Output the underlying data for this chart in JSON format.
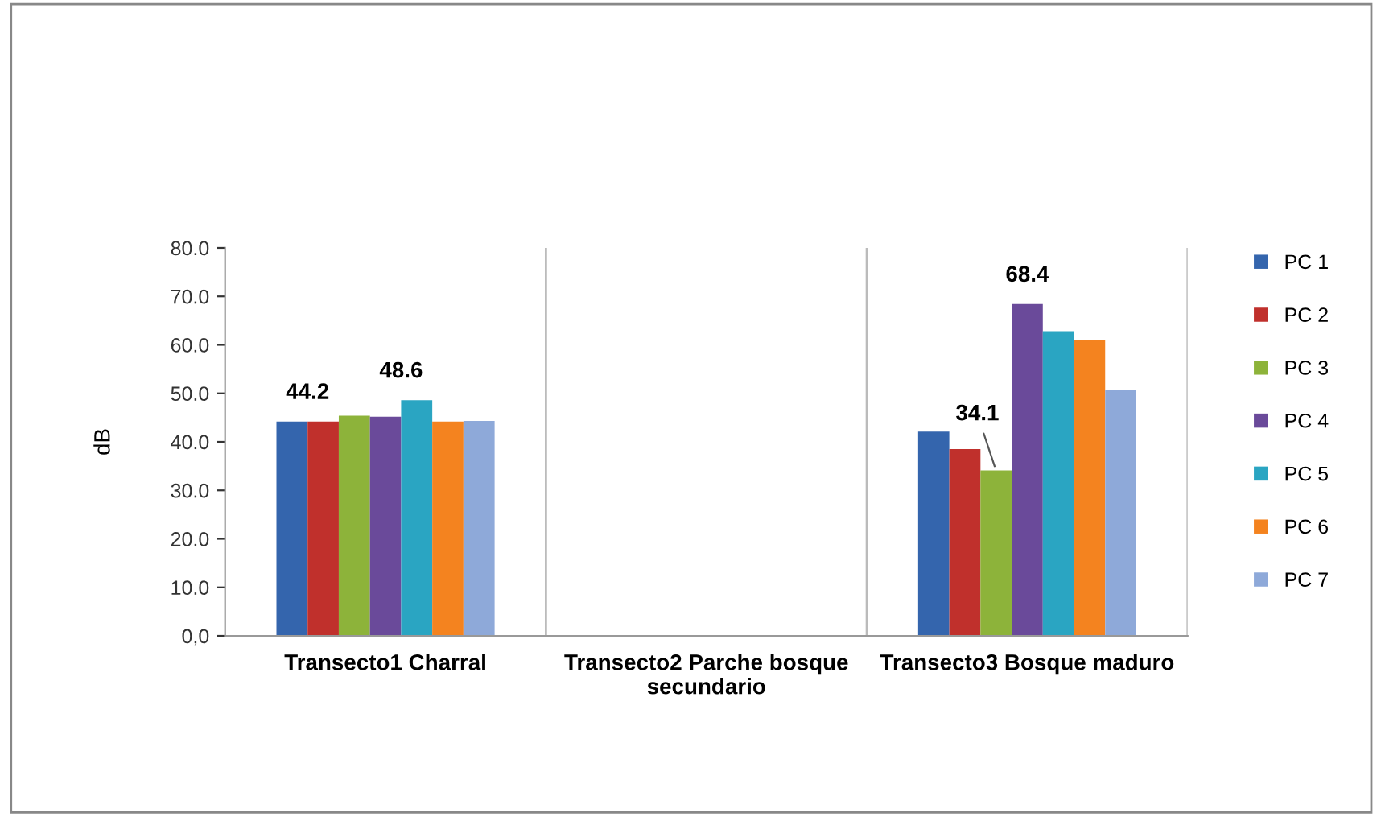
{
  "chart_data": {
    "type": "bar",
    "ylabel": "dB",
    "categories": [
      "Transecto1 Charral",
      "Transecto2 Parche bosque secundario",
      "Transecto3 Bosque maduro"
    ],
    "series": [
      {
        "name": "PC 1",
        "color": "#3465ad",
        "values": [
          44.2,
          null,
          42.1
        ]
      },
      {
        "name": "PC 2",
        "color": "#c0302c",
        "values": [
          44.2,
          null,
          38.5
        ],
        "value_labels": [
          "44.2",
          null,
          null
        ]
      },
      {
        "name": "PC 3",
        "color": "#8db33a",
        "values": [
          45.4,
          null,
          34.1
        ],
        "value_labels": [
          null,
          null,
          "34.1"
        ]
      },
      {
        "name": "PC 4",
        "color": "#6a4a9a",
        "values": [
          45.2,
          null,
          68.4
        ],
        "value_labels": [
          null,
          null,
          "68.4"
        ]
      },
      {
        "name": "PC 5",
        "color": "#2aa5c2",
        "values": [
          48.6,
          null,
          62.8
        ],
        "value_labels": [
          "48.6",
          null,
          null
        ]
      },
      {
        "name": "PC 6",
        "color": "#f4831f",
        "values": [
          44.2,
          null,
          60.9
        ]
      },
      {
        "name": "PC 7",
        "color": "#8ea9d9",
        "values": [
          44.3,
          null,
          50.8
        ]
      }
    ],
    "ylim": [
      0,
      80
    ],
    "yticks": [
      {
        "value": 0,
        "label": "0,0"
      },
      {
        "value": 10,
        "label": "10.0"
      },
      {
        "value": 20,
        "label": "20.0"
      },
      {
        "value": 30,
        "label": "30.0"
      },
      {
        "value": 40,
        "label": "40.0"
      },
      {
        "value": 50,
        "label": "50.0"
      },
      {
        "value": 60,
        "label": "60.0"
      },
      {
        "value": 70,
        "label": "70.0"
      },
      {
        "value": 80,
        "label": "80.0"
      }
    ],
    "grid": "x",
    "legend": "right"
  }
}
